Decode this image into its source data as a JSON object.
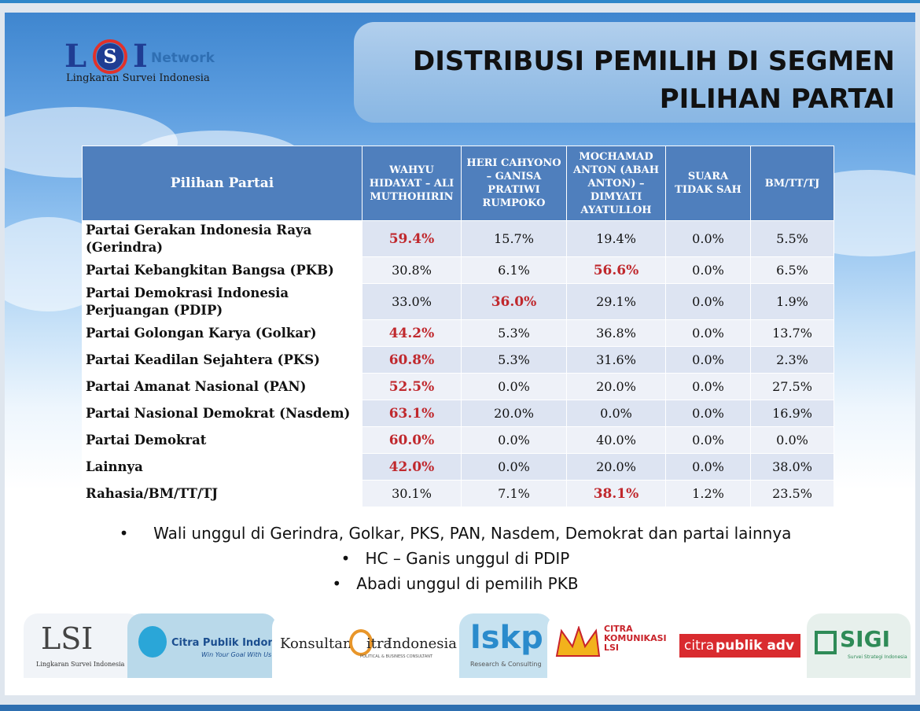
{
  "logo": {
    "mark": "LSI",
    "network": "Network",
    "subtitle": "Lingkaran Survei Indonesia"
  },
  "title": {
    "line1": "DISTRIBUSI PEMILIH DI SEGMEN",
    "line2": "PILIHAN PARTAI"
  },
  "table": {
    "headers": [
      "Pilihan Partai",
      "WAHYU HIDAYAT – ALI MUTHOHIRIN",
      "HERI CAHYONO – GANISA PRATIWI RUMPOKO",
      "MOCHAMAD ANTON (ABAH ANTON) – DIMYATI AYATULLOH",
      "SUARA TIDAK SAH",
      "BM/TT/TJ"
    ],
    "rows": [
      {
        "party": "Partai Gerakan Indonesia Raya (Gerindra)",
        "values": [
          "59.4%",
          "15.7%",
          "19.4%",
          "0.0%",
          "5.5%"
        ],
        "highlight": 0
      },
      {
        "party": "Partai Kebangkitan Bangsa (PKB)",
        "values": [
          "30.8%",
          "6.1%",
          "56.6%",
          "0.0%",
          "6.5%"
        ],
        "highlight": 2
      },
      {
        "party": "Partai Demokrasi Indonesia Perjuangan (PDIP)",
        "values": [
          "33.0%",
          "36.0%",
          "29.1%",
          "0.0%",
          "1.9%"
        ],
        "highlight": 1
      },
      {
        "party": "Partai Golongan Karya (Golkar)",
        "values": [
          "44.2%",
          "5.3%",
          "36.8%",
          "0.0%",
          "13.7%"
        ],
        "highlight": 0
      },
      {
        "party": "Partai Keadilan Sejahtera (PKS)",
        "values": [
          "60.8%",
          "5.3%",
          "31.6%",
          "0.0%",
          "2.3%"
        ],
        "highlight": 0
      },
      {
        "party": "Partai Amanat Nasional (PAN)",
        "values": [
          "52.5%",
          "0.0%",
          "20.0%",
          "0.0%",
          "27.5%"
        ],
        "highlight": 0
      },
      {
        "party": "Partai Nasional Demokrat (Nasdem)",
        "values": [
          "63.1%",
          "20.0%",
          "0.0%",
          "0.0%",
          "16.9%"
        ],
        "highlight": 0
      },
      {
        "party": "Partai Demokrat",
        "values": [
          "60.0%",
          "0.0%",
          "40.0%",
          "0.0%",
          "0.0%"
        ],
        "highlight": 0
      },
      {
        "party": "Lainnya",
        "values": [
          "42.0%",
          "0.0%",
          "20.0%",
          "0.0%",
          "38.0%"
        ],
        "highlight": 0
      },
      {
        "party": "Rahasia/BM/TT/TJ",
        "values": [
          "30.1%",
          "7.1%",
          "38.1%",
          "1.2%",
          "23.5%"
        ],
        "highlight": 2
      }
    ],
    "highlight_color": "#c0282d",
    "header_color": "#4f7fbd"
  },
  "bullets": [
    "Wali unggul di Gerindra, Golkar, PKS, PAN, Nasdem, Demokrat dan partai lainnya",
    "HC – Ganis unggul di PDIP",
    "Abadi unggul di pemilih PKB"
  ],
  "footer_logos": {
    "lsi": {
      "mark": "LSI",
      "subtitle": "Lingkaran Survei Indonesia"
    },
    "cpi": {
      "name": "Citra Publik Indonesia",
      "tagline": "Win Your Goal With Us"
    },
    "konsultan": {
      "word1": "Konsultan",
      "word2": "itra",
      "word3": "Indonesia",
      "tagline": "POLITICAL & BUSINESS CONSULTANT"
    },
    "lskp": {
      "mark": "lskp",
      "tagline": "Research & Consulting"
    },
    "citra_kom": {
      "line1": "CITRA",
      "line2": "KOMUNIKASI",
      "line3": "LSI"
    },
    "citrapublik_adv": {
      "part1": "citra",
      "part2": "publik adv"
    },
    "sigi": {
      "mark": "SIGI",
      "tagline": "Survei Strategi Indonesia"
    }
  }
}
